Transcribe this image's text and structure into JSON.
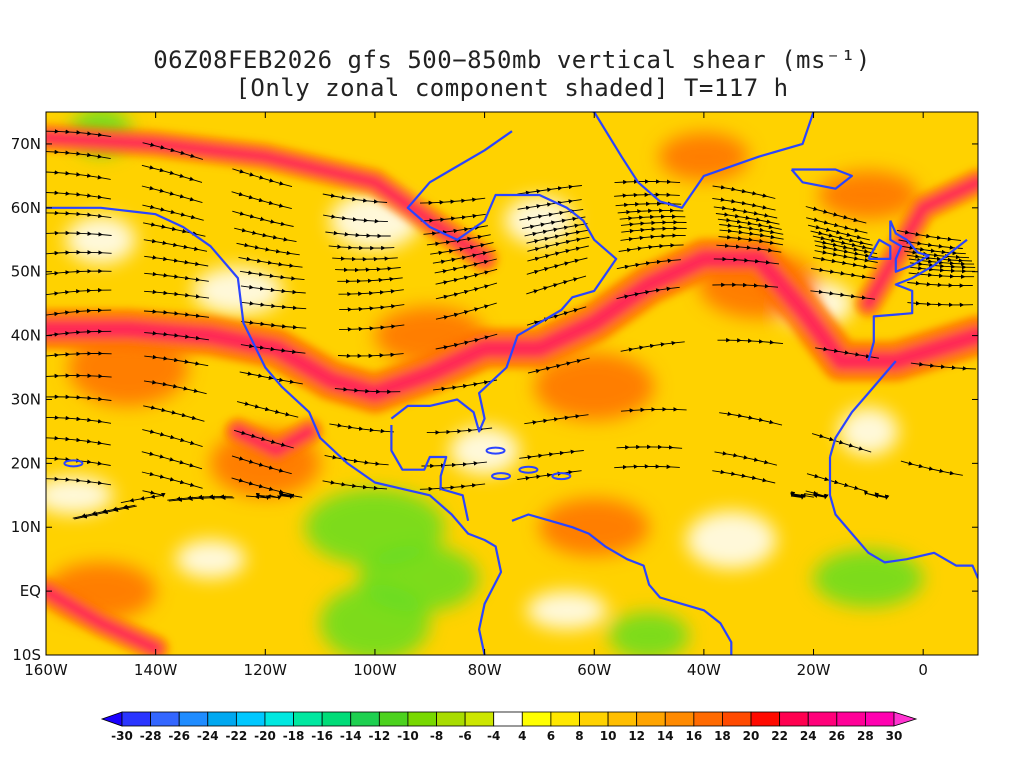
{
  "title": {
    "line1": "06Z08FEB2026 gfs 500−850mb vertical shear (ms⁻¹)",
    "line2": "[Only zonal component shaded] T=117 h"
  },
  "lat_axis": {
    "labels": [
      "70N",
      "60N",
      "50N",
      "40N",
      "30N",
      "20N",
      "10N",
      "EQ",
      "10S"
    ],
    "values": [
      70,
      60,
      50,
      40,
      30,
      20,
      10,
      0,
      -10
    ],
    "range": [
      -10,
      75
    ]
  },
  "lon_axis": {
    "labels": [
      "160W",
      "140W",
      "120W",
      "100W",
      "80W",
      "60W",
      "40W",
      "20W",
      "0"
    ],
    "values": [
      -160,
      -140,
      -120,
      -100,
      -80,
      -60,
      -40,
      -20,
      0
    ],
    "range": [
      -160,
      10
    ]
  },
  "colorbar": {
    "levels": [
      "-30",
      "-28",
      "-26",
      "-24",
      "-22",
      "-20",
      "-18",
      "-16",
      "-14",
      "-12",
      "-10",
      "-8",
      "-6",
      "-4",
      "4",
      "6",
      "8",
      "10",
      "12",
      "14",
      "16",
      "18",
      "20",
      "22",
      "24",
      "26",
      "28",
      "30"
    ],
    "colors": [
      "#1a00ff",
      "#2a35ff",
      "#3366ff",
      "#1f8cff",
      "#00a8f0",
      "#00c8ff",
      "#00e8e0",
      "#00e8a0",
      "#00dc78",
      "#1ed050",
      "#4cd21e",
      "#78d800",
      "#a8dc00",
      "#cce600",
      "#ffffff",
      "#ffff00",
      "#ffe800",
      "#ffd200",
      "#ffbe00",
      "#ffa400",
      "#ff8a00",
      "#ff6a00",
      "#ff4a00",
      "#ff0a00",
      "#ff0050",
      "#ff007a",
      "#ff0098",
      "#ff00b0",
      "#ff33d0"
    ]
  },
  "map_legend": {
    "shading": "zonal component of 500-850mb vertical shear",
    "jet_color": "#ff2a55",
    "strong_color": "#ff7000",
    "moderate_color": "#ffcc00",
    "easterly_color": "#66dd22",
    "coastline_color": "#2a44ff"
  }
}
